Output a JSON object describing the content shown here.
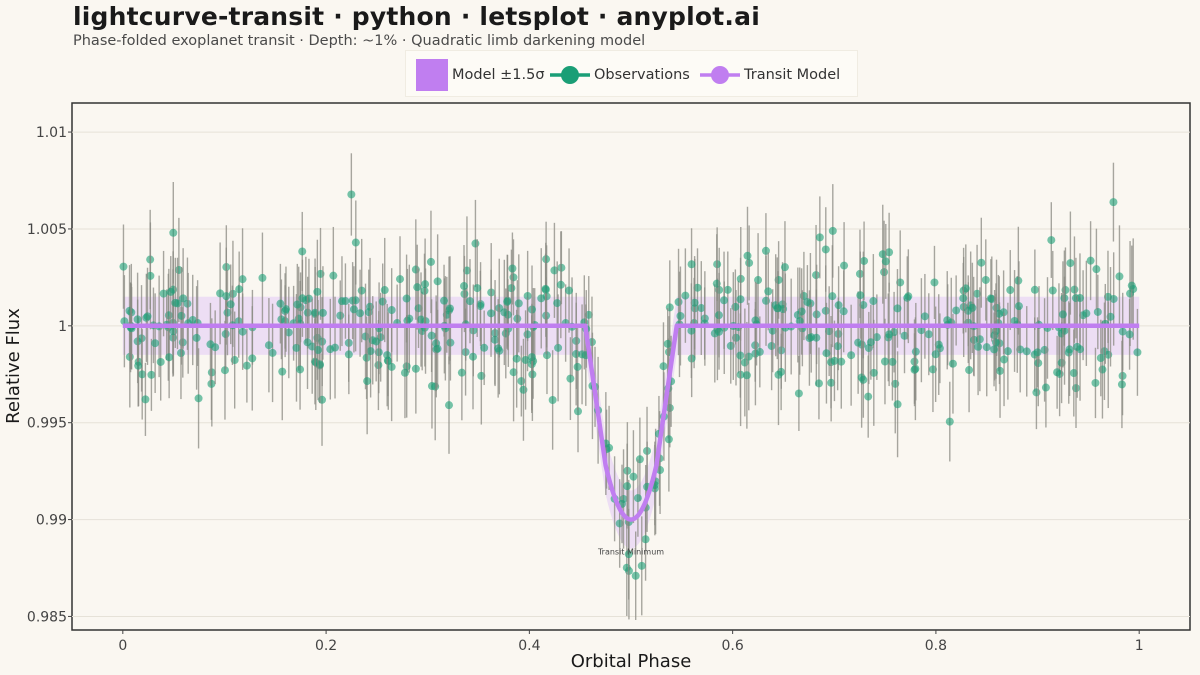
{
  "title": "lightcurve-transit · python · letsplot · anyplot.ai",
  "subtitle": "Phase-folded exoplanet transit  ·  Depth: ~1%  ·  Quadratic limb darkening model",
  "colors": {
    "background": "#faf7f1",
    "observations": "#1a9e76",
    "errorbar": "#8a8a82",
    "model": "#c07ef0",
    "band": "#e8d6f4"
  },
  "legend": {
    "items": [
      {
        "label": "Model ±1.5σ",
        "symbol": "square"
      },
      {
        "label": "Observations",
        "symbol": "dot-line"
      },
      {
        "label": "Transit Model",
        "symbol": "dot-line"
      }
    ]
  },
  "chart_data": {
    "type": "scatter",
    "title": "lightcurve-transit · python · letsplot · anyplot.ai",
    "subtitle": "Phase-folded exoplanet transit  ·  Depth: ~1%  ·  Quadratic limb darkening model",
    "xlabel": "Orbital Phase",
    "ylabel": "Relative Flux",
    "xlim": [
      -0.05,
      1.05
    ],
    "ylim": [
      0.9843,
      1.0115
    ],
    "x_ticks": [
      0,
      0.2,
      0.4,
      0.6,
      0.8,
      1
    ],
    "x_tick_labels": [
      "0",
      "0.2",
      "0.4",
      "0.6",
      "0.8",
      "1"
    ],
    "y_ticks": [
      0.985,
      0.99,
      0.995,
      1,
      1.005,
      1.01
    ],
    "y_tick_labels": [
      "0.985",
      "0.99",
      "0.995",
      "1",
      "1.005",
      "1.01"
    ],
    "grid": true,
    "legend_position": "top",
    "model": {
      "name": "Transit Model",
      "baseline": 1.0,
      "depth": 0.01,
      "transit_start": 0.455,
      "transit_end": 0.545,
      "ingress_end": 0.475,
      "egress_start": 0.525,
      "x_range": [
        0,
        1
      ]
    },
    "band": {
      "name": "Model ±1.5σ",
      "half_width": 0.0015
    },
    "observations": {
      "name": "Observations",
      "n": 520,
      "noise_sigma": 0.0017,
      "errorbar_range": [
        0.0018,
        0.0028
      ],
      "seed": 7
    },
    "annotations": [
      {
        "text": "Transit Minimum",
        "x": 0.5,
        "y": 0.9882
      }
    ]
  }
}
